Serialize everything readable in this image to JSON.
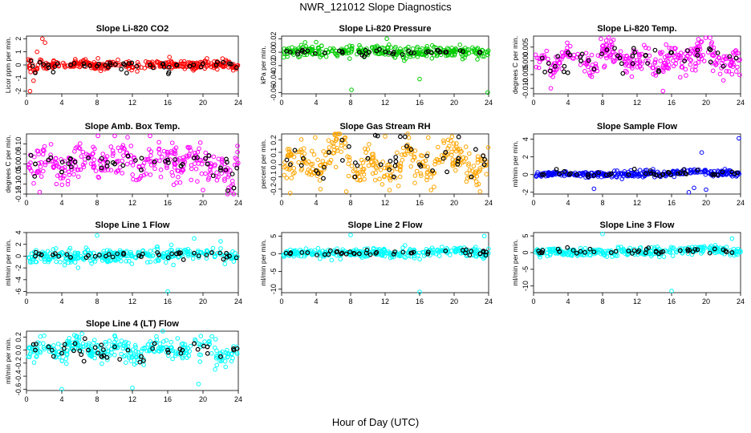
{
  "figure": {
    "title": "NWR_121012  Slope Diagnostics",
    "xlabel": "Hour of Day (UTC)"
  },
  "chart_data": [
    {
      "type": "scatter",
      "title": "Slope Li-820 CO2",
      "ylabel": "Licor ppm per min.",
      "xlim": [
        0,
        24
      ],
      "ylim": [
        -2.2,
        2.2
      ],
      "xticks": [
        0,
        4,
        8,
        12,
        16,
        20,
        24
      ],
      "yticks": [
        -2,
        -1,
        0,
        1,
        2
      ],
      "ytick_labels": [
        "-2",
        "-1",
        "0",
        "1",
        "2"
      ],
      "color": "#ff0000",
      "spread": 0.22,
      "series": [
        {
          "x": [
            0.5,
            1.0,
            1.5,
            2.5,
            3.5,
            5,
            6.5,
            8,
            9.5,
            11,
            12.5,
            14,
            15.5,
            17,
            18.5,
            20,
            21.5,
            23,
            23.8
          ],
          "y": [
            0.3,
            -0.6,
            0.2,
            -0.2,
            0.1,
            0.0,
            0.1,
            -0.1,
            0.0,
            0.1,
            -0.1,
            0.0,
            0.1,
            0.0,
            -0.1,
            0.1,
            0.0,
            0.1,
            -0.2
          ]
        },
        {
          "x": [
            1.8,
            2.1,
            0.8,
            1.2,
            0.4,
            8.1,
            16.2
          ],
          "y": [
            2.0,
            1.7,
            -1.2,
            1.0,
            -2.0,
            0.5,
            0.6
          ]
        }
      ]
    },
    {
      "type": "scatter",
      "title": "Slope Li-820 Pressure",
      "ylabel": "kPa per min.",
      "xlim": [
        0,
        24
      ],
      "ylim": [
        -0.062,
        0.024
      ],
      "xticks": [
        0,
        4,
        8,
        12,
        16,
        20,
        24
      ],
      "yticks": [
        -0.06,
        -0.04,
        -0.02,
        0.0,
        0.02
      ],
      "ytick_labels": [
        "-0.06",
        "-0.04",
        "-0.02",
        "0.00",
        "0.02"
      ],
      "color": "#00cc00",
      "spread": 0.006,
      "series": [
        {
          "x": [
            1,
            3,
            5,
            7,
            9,
            11,
            13,
            15,
            17,
            19,
            21,
            23
          ],
          "y": [
            0.0,
            0.002,
            -0.001,
            0.001,
            0.0,
            0.002,
            0.0,
            -0.001,
            0.001,
            0.0,
            0.001,
            0.0
          ]
        },
        {
          "x": [
            8.1,
            16.0,
            23.9,
            12.2,
            4.0
          ],
          "y": [
            -0.056,
            -0.04,
            -0.06,
            0.02,
            0.015
          ]
        }
      ]
    },
    {
      "type": "scatter",
      "title": "Slope Li-820 Temp.",
      "ylabel": "degrees C per min.",
      "xlim": [
        0,
        24
      ],
      "ylim": [
        -0.012,
        0.009
      ],
      "xticks": [
        0,
        4,
        8,
        12,
        16,
        20,
        24
      ],
      "yticks": [
        -0.01,
        -0.005,
        0.0,
        0.005
      ],
      "ytick_labels": [
        "-0.010",
        "-0.005",
        "0.000",
        "0.005"
      ],
      "color": "#ff00ff",
      "spread": 0.0035,
      "series": [
        {
          "x": [
            1,
            2.5,
            4,
            5.5,
            7,
            8.5,
            10,
            11.5,
            13,
            14.5,
            16,
            17.5,
            19,
            20.5,
            22,
            23.5
          ],
          "y": [
            0.001,
            -0.002,
            0.003,
            0.0,
            -0.003,
            0.004,
            0.001,
            -0.001,
            0.002,
            -0.004,
            0.003,
            0.0,
            0.002,
            0.004,
            -0.002,
            0.001
          ]
        },
        {
          "x": [
            7.8,
            9.0,
            15.0,
            2.0,
            19.5
          ],
          "y": [
            0.008,
            0.007,
            -0.011,
            -0.01,
            0.007
          ]
        }
      ]
    },
    {
      "type": "scatter",
      "title": "Slope Amb. Box Temp.",
      "ylabel": "degrees C per min.",
      "xlim": [
        0,
        24
      ],
      "ylim": [
        -0.15,
        0.15
      ],
      "xticks": [
        0,
        4,
        8,
        12,
        16,
        20,
        24
      ],
      "yticks": [
        -0.15,
        -0.1,
        -0.05,
        0.0,
        0.05,
        0.1
      ],
      "ytick_labels": [
        "-0.15",
        "-0.10",
        "-0.05",
        "0.00",
        "0.05",
        "0.10"
      ],
      "color": "#ff00ff",
      "spread": 0.06,
      "series": [
        {
          "x": [
            1,
            2.5,
            4,
            5.5,
            7,
            8.5,
            10,
            11.5,
            13,
            14.5,
            16,
            17.5,
            19,
            20.5,
            22,
            23.5
          ],
          "y": [
            0.0,
            0.02,
            -0.04,
            0.01,
            0.03,
            -0.02,
            0.0,
            0.04,
            -0.03,
            0.01,
            0.02,
            -0.01,
            0.03,
            0.0,
            -0.02,
            -0.12
          ]
        },
        {
          "x": [
            8.1,
            10.0,
            1.5,
            14.0,
            20.0
          ],
          "y": [
            0.14,
            0.14,
            -0.14,
            0.14,
            -0.13
          ]
        }
      ]
    },
    {
      "type": "scatter",
      "title": "Slope Gas Stream RH",
      "ylabel": "percent per min.",
      "xlim": [
        0,
        24
      ],
      "ylim": [
        -0.24,
        0.25
      ],
      "xticks": [
        0,
        4,
        8,
        12,
        16,
        20,
        24
      ],
      "yticks": [
        -0.2,
        -0.1,
        0.0,
        0.1,
        0.2
      ],
      "ytick_labels": [
        "-0.2",
        "-0.1",
        "0.0",
        "0.1",
        "0.2"
      ],
      "color": "#ffa500",
      "spread": 0.1,
      "series": [
        {
          "x": [
            1,
            2.5,
            4,
            5.5,
            7,
            8.5,
            10,
            11.5,
            13,
            14.5,
            16,
            17.5,
            19,
            20.5,
            22,
            23.5
          ],
          "y": [
            0.0,
            0.05,
            -0.05,
            0.1,
            0.2,
            -0.1,
            0.05,
            0.0,
            -0.1,
            0.15,
            0.0,
            -0.05,
            0.1,
            0.05,
            -0.1,
            0.0
          ]
        },
        {
          "x": [
            3.9,
            4.5,
            7.5,
            12.0,
            17.0,
            23.0
          ],
          "y": [
            0.22,
            -0.2,
            -0.22,
            0.23,
            0.22,
            -0.22
          ]
        }
      ]
    },
    {
      "type": "scatter",
      "title": "Slope Sample Flow",
      "ylabel": "ml/min per min.",
      "xlim": [
        0,
        24
      ],
      "ylim": [
        -2.2,
        4.6
      ],
      "xticks": [
        0,
        4,
        8,
        12,
        16,
        20,
        24
      ],
      "yticks": [
        -2,
        0,
        2,
        4
      ],
      "ytick_labels": [
        "-2",
        "0",
        "2",
        "4"
      ],
      "color": "#0000ff",
      "spread": 0.25,
      "series": [
        {
          "x": [
            1,
            3,
            5,
            7,
            9,
            11,
            13,
            15,
            17,
            19,
            21,
            23
          ],
          "y": [
            0.0,
            0.1,
            0.0,
            -0.1,
            0.1,
            0.0,
            0.1,
            0.0,
            0.2,
            0.5,
            0.0,
            0.3
          ]
        },
        {
          "x": [
            7.0,
            18.0,
            19.5,
            23.8,
            18.6,
            20.0
          ],
          "y": [
            -1.6,
            -2.0,
            2.5,
            4.1,
            -1.5,
            -1.7
          ]
        }
      ]
    },
    {
      "type": "scatter",
      "title": "Slope Line 1 Flow",
      "ylabel": "ml/min per min.",
      "xlim": [
        0,
        24
      ],
      "ylim": [
        -6.2,
        4
      ],
      "xticks": [
        0,
        4,
        8,
        12,
        16,
        20,
        24
      ],
      "yticks": [
        -6,
        -4,
        -2,
        0,
        2,
        4
      ],
      "ytick_labels": [
        "-6",
        "-4",
        "-2",
        "0",
        "2",
        "4"
      ],
      "color": "#00ffff",
      "spread": 0.8,
      "series": [
        {
          "x": [
            1,
            3,
            5,
            7,
            9,
            11,
            13,
            15,
            17,
            19,
            21,
            23
          ],
          "y": [
            0.0,
            0.2,
            -0.2,
            0.1,
            0.0,
            0.3,
            -0.1,
            0.2,
            0.4,
            0.5,
            0.6,
            0.0
          ]
        },
        {
          "x": [
            8.0,
            16.0,
            19.0,
            22.0
          ],
          "y": [
            3.5,
            -6.0,
            3.0,
            2.5
          ]
        }
      ]
    },
    {
      "type": "scatter",
      "title": "Slope Line 2 Flow",
      "ylabel": "ml/min per min.",
      "xlim": [
        0,
        24
      ],
      "ylim": [
        -11,
        6
      ],
      "xticks": [
        0,
        4,
        8,
        12,
        16,
        20,
        24
      ],
      "yticks": [
        -10,
        -5,
        0,
        5
      ],
      "ytick_labels": [
        "-10",
        "-5",
        "0",
        "5"
      ],
      "color": "#00ffff",
      "spread": 0.9,
      "series": [
        {
          "x": [
            1,
            3,
            5,
            7,
            9,
            11,
            13,
            15,
            17,
            19,
            21,
            23
          ],
          "y": [
            0.0,
            0.3,
            -0.2,
            0.2,
            0.0,
            0.4,
            -0.1,
            0.2,
            0.5,
            0.8,
            1.0,
            0.0
          ]
        },
        {
          "x": [
            8.0,
            16.0,
            23.5
          ],
          "y": [
            5.3,
            -10.8,
            5.0
          ]
        }
      ]
    },
    {
      "type": "scatter",
      "title": "Slope Line 3 Flow",
      "ylabel": "ml/min per min.",
      "xlim": [
        0,
        24
      ],
      "ylim": [
        -12,
        6
      ],
      "xticks": [
        0,
        4,
        8,
        12,
        16,
        20,
        24
      ],
      "yticks": [
        -10,
        -5,
        0,
        5
      ],
      "ytick_labels": [
        "-10",
        "-5",
        "0",
        "5"
      ],
      "color": "#00ffff",
      "spread": 0.9,
      "series": [
        {
          "x": [
            1,
            3,
            5,
            7,
            9,
            11,
            13,
            15,
            17,
            19,
            21,
            23
          ],
          "y": [
            0.0,
            0.3,
            -0.2,
            0.2,
            0.0,
            0.5,
            -0.1,
            0.3,
            0.6,
            0.9,
            1.1,
            0.0
          ]
        },
        {
          "x": [
            8.0,
            16.0,
            23.0
          ],
          "y": [
            5.6,
            -11.5,
            4.2
          ]
        }
      ]
    },
    {
      "type": "scatter",
      "title": "Slope Line 4 (LT) Flow",
      "ylabel": "ml/min per min.",
      "xlim": [
        0,
        24
      ],
      "ylim": [
        -0.62,
        0.29
      ],
      "xticks": [
        0,
        4,
        8,
        12,
        16,
        20,
        24
      ],
      "yticks": [
        -0.6,
        -0.4,
        -0.2,
        0.0,
        0.2
      ],
      "ytick_labels": [
        "-0.6",
        "-0.4",
        "-0.2",
        "0.0",
        "0.2"
      ],
      "color": "#00ffff",
      "spread": 0.12,
      "series": [
        {
          "x": [
            1,
            2.5,
            4,
            5.5,
            7,
            8.5,
            10,
            11.5,
            13,
            14.5,
            16,
            17.5,
            19,
            20.5,
            22,
            23.5
          ],
          "y": [
            0.0,
            0.05,
            -0.05,
            0.1,
            0.0,
            -0.1,
            0.05,
            0.0,
            -0.1,
            0.1,
            0.0,
            -0.05,
            0.1,
            0.05,
            -0.1,
            0.0
          ]
        },
        {
          "x": [
            4.0,
            12.0,
            19.5,
            2.0,
            21.0
          ],
          "y": [
            -0.6,
            -0.58,
            -0.52,
            0.22,
            0.21
          ]
        }
      ]
    }
  ]
}
